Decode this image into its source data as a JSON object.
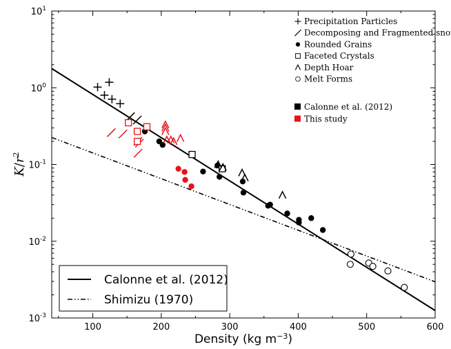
{
  "chart_data": {
    "type": "scatter",
    "title": "",
    "xlabel": "Density (kg m",
    "xlabel_sup": "−3",
    "xlabel_close": ")",
    "ylabel_K": "K",
    "ylabel_sep": "/",
    "ylabel_r": "r",
    "ylabel_sup": "2",
    "xlim": [
      40,
      600
    ],
    "ylim": [
      0.001,
      10
    ],
    "yscale": "log",
    "grid": false,
    "x_ticks": [
      100,
      200,
      300,
      400,
      500,
      600
    ],
    "x_tick_labels": [
      "100",
      "200",
      "300",
      "400",
      "500",
      "600"
    ],
    "y_ticks": [
      {
        "value": 0.001,
        "base": "10",
        "exp": "-3"
      },
      {
        "value": 0.01,
        "base": "10",
        "exp": "-2"
      },
      {
        "value": 0.1,
        "base": "10",
        "exp": "-1"
      },
      {
        "value": 1,
        "base": "10",
        "exp": "0"
      },
      {
        "value": 10,
        "base": "10",
        "exp": "1"
      }
    ],
    "colors": {
      "calonne": "#000000",
      "this_study": "#e8121a"
    },
    "lines": [
      {
        "name": "Calonne et al. (2012)",
        "style": "solid",
        "x": [
          40,
          600
        ],
        "y": [
          1.78,
          0.00125
        ]
      },
      {
        "name": "Shimizu (1970)",
        "style": "dashdot",
        "x": [
          40,
          600
        ],
        "y": [
          0.225,
          0.00296
        ]
      }
    ],
    "points": [
      {
        "x": 107,
        "y": 1.02,
        "marker": "plus",
        "source": "calonne"
      },
      {
        "x": 117,
        "y": 0.8,
        "marker": "plus",
        "source": "calonne"
      },
      {
        "x": 124,
        "y": 1.18,
        "marker": "plus",
        "source": "calonne"
      },
      {
        "x": 128,
        "y": 0.71,
        "marker": "plus",
        "source": "calonne"
      },
      {
        "x": 140,
        "y": 0.62,
        "marker": "plus",
        "source": "calonne"
      },
      {
        "x": 155,
        "y": 0.42,
        "marker": "slash",
        "source": "calonne"
      },
      {
        "x": 165,
        "y": 0.38,
        "marker": "slash",
        "source": "calonne"
      },
      {
        "x": 176,
        "y": 0.27,
        "marker": "dot",
        "source": "calonne"
      },
      {
        "x": 197,
        "y": 0.2,
        "marker": "dot",
        "source": "calonne"
      },
      {
        "x": 202,
        "y": 0.18,
        "marker": "dot",
        "source": "calonne"
      },
      {
        "x": 261,
        "y": 0.081,
        "marker": "dot",
        "source": "calonne"
      },
      {
        "x": 282,
        "y": 0.097,
        "marker": "dot",
        "source": "calonne"
      },
      {
        "x": 285,
        "y": 0.069,
        "marker": "dot",
        "source": "calonne"
      },
      {
        "x": 319,
        "y": 0.06,
        "marker": "dot",
        "source": "calonne"
      },
      {
        "x": 320,
        "y": 0.043,
        "marker": "dot",
        "source": "calonne"
      },
      {
        "x": 356,
        "y": 0.029,
        "marker": "dot",
        "source": "calonne"
      },
      {
        "x": 359,
        "y": 0.03,
        "marker": "dot",
        "source": "calonne"
      },
      {
        "x": 384,
        "y": 0.023,
        "marker": "dot",
        "source": "calonne"
      },
      {
        "x": 401,
        "y": 0.019,
        "marker": "dot",
        "source": "calonne"
      },
      {
        "x": 401,
        "y": 0.0175,
        "marker": "dot",
        "source": "calonne"
      },
      {
        "x": 419,
        "y": 0.02,
        "marker": "dot",
        "source": "calonne"
      },
      {
        "x": 436,
        "y": 0.014,
        "marker": "dot",
        "source": "calonne"
      },
      {
        "x": 245,
        "y": 0.135,
        "marker": "square",
        "source": "calonne"
      },
      {
        "x": 289,
        "y": 0.088,
        "marker": "square",
        "source": "calonne"
      },
      {
        "x": 283,
        "y": 0.1,
        "marker": "caret",
        "source": "calonne"
      },
      {
        "x": 290,
        "y": 0.092,
        "marker": "caret",
        "source": "calonne"
      },
      {
        "x": 318,
        "y": 0.078,
        "marker": "caret",
        "source": "calonne"
      },
      {
        "x": 322,
        "y": 0.067,
        "marker": "caret",
        "source": "calonne"
      },
      {
        "x": 377,
        "y": 0.04,
        "marker": "caret",
        "source": "calonne"
      },
      {
        "x": 477,
        "y": 0.0068,
        "marker": "circle",
        "source": "calonne"
      },
      {
        "x": 476,
        "y": 0.005,
        "marker": "circle",
        "source": "calonne"
      },
      {
        "x": 503,
        "y": 0.0052,
        "marker": "circle",
        "source": "calonne"
      },
      {
        "x": 509,
        "y": 0.0047,
        "marker": "circle",
        "source": "calonne"
      },
      {
        "x": 531,
        "y": 0.0041,
        "marker": "circle",
        "source": "calonne"
      },
      {
        "x": 555,
        "y": 0.0025,
        "marker": "circle",
        "source": "calonne"
      },
      {
        "x": 166,
        "y": 0.2,
        "marker": "slash",
        "source": "this_study"
      },
      {
        "x": 166,
        "y": 0.14,
        "marker": "slash",
        "source": "this_study"
      },
      {
        "x": 168,
        "y": 0.19,
        "marker": "slash",
        "source": "this_study"
      },
      {
        "x": 127,
        "y": 0.26,
        "marker": "slash",
        "source": "this_study"
      },
      {
        "x": 144,
        "y": 0.25,
        "marker": "slash",
        "source": "this_study"
      },
      {
        "x": 152,
        "y": 0.35,
        "marker": "square",
        "source": "this_study"
      },
      {
        "x": 165,
        "y": 0.27,
        "marker": "square",
        "source": "this_study"
      },
      {
        "x": 165,
        "y": 0.2,
        "marker": "square",
        "source": "this_study"
      },
      {
        "x": 179,
        "y": 0.31,
        "marker": "square",
        "source": "this_study"
      },
      {
        "x": 206,
        "y": 0.33,
        "marker": "caret",
        "source": "this_study"
      },
      {
        "x": 206,
        "y": 0.3,
        "marker": "caret",
        "source": "this_study"
      },
      {
        "x": 206,
        "y": 0.27,
        "marker": "caret",
        "source": "this_study"
      },
      {
        "x": 208,
        "y": 0.21,
        "marker": "caret",
        "source": "this_study"
      },
      {
        "x": 214,
        "y": 0.21,
        "marker": "caret",
        "source": "this_study"
      },
      {
        "x": 218,
        "y": 0.2,
        "marker": "caret",
        "source": "this_study"
      },
      {
        "x": 228,
        "y": 0.22,
        "marker": "caret",
        "source": "this_study"
      },
      {
        "x": 225,
        "y": 0.088,
        "marker": "dot",
        "source": "this_study"
      },
      {
        "x": 234,
        "y": 0.08,
        "marker": "dot",
        "source": "this_study"
      },
      {
        "x": 235,
        "y": 0.063,
        "marker": "dot",
        "source": "this_study"
      },
      {
        "x": 244,
        "y": 0.052,
        "marker": "dot",
        "source": "this_study"
      }
    ],
    "symbol_legend": [
      {
        "marker": "plus",
        "label": "Precipitation Particles"
      },
      {
        "marker": "slash",
        "label": "Decomposing and Fragmented snow"
      },
      {
        "marker": "dot",
        "label": "Rounded Grains"
      },
      {
        "marker": "square",
        "label": "Faceted Crystals"
      },
      {
        "marker": "caret",
        "label": "Depth Hoar"
      },
      {
        "marker": "circle",
        "label": "Melt Forms"
      }
    ],
    "source_legend": [
      {
        "source": "calonne",
        "label": "Calonne et al. (2012)"
      },
      {
        "source": "this_study",
        "label": "This study"
      }
    ],
    "line_legend": [
      {
        "style": "solid",
        "label": "Calonne et al. (2012)"
      },
      {
        "style": "dashdot",
        "label": "Shimizu (1970)"
      }
    ],
    "legend_placement": {
      "symbols": "top-right",
      "lines": "bottom-left"
    }
  }
}
